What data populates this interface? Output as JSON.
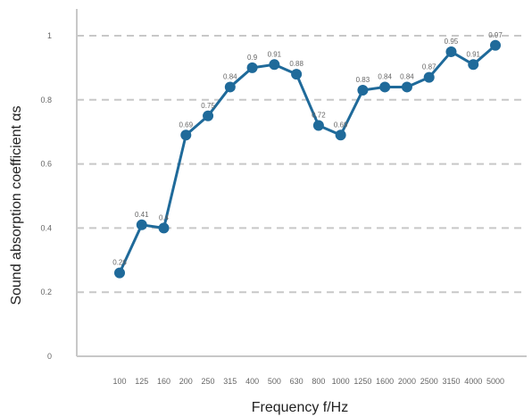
{
  "chart_data": {
    "type": "line",
    "x_categories": [
      "100",
      "125",
      "160",
      "200",
      "250",
      "315",
      "400",
      "500",
      "630",
      "800",
      "1000",
      "1250",
      "1600",
      "2000",
      "2500",
      "3150",
      "4000",
      "5000"
    ],
    "x_values": [
      100,
      125,
      160,
      200,
      250,
      315,
      400,
      500,
      630,
      800,
      1000,
      1250,
      1600,
      2000,
      2500,
      3150,
      4000,
      5000
    ],
    "series": [
      {
        "values": [
          0.26,
          0.41,
          0.4,
          0.69,
          0.75,
          0.84,
          0.9,
          0.91,
          0.88,
          0.72,
          0.69,
          0.83,
          0.84,
          0.84,
          0.87,
          0.95,
          0.91,
          0.97
        ],
        "labels": [
          "0.26",
          "0.41",
          "0.4",
          "0.69",
          "0.75",
          "0.84",
          "0.9",
          "0.91",
          "0.88",
          "0.72",
          "0.69",
          "0.83",
          "0.84",
          "0.84",
          "0.87",
          "0.95",
          "0.91",
          "0.97"
        ],
        "color": "#1f6a9a"
      }
    ],
    "xlabel": "Frequency f/Hz",
    "ylabel": "Sound absorption coefficient αs",
    "ylim": [
      0,
      1
    ],
    "yticks": [
      "0",
      "0.2",
      "0.4",
      "0.6",
      "0.8",
      "1"
    ],
    "grid": true,
    "grid_style": "dashed",
    "grid_color": "#c8c8c8",
    "axis_color": "#c8c8c8"
  }
}
